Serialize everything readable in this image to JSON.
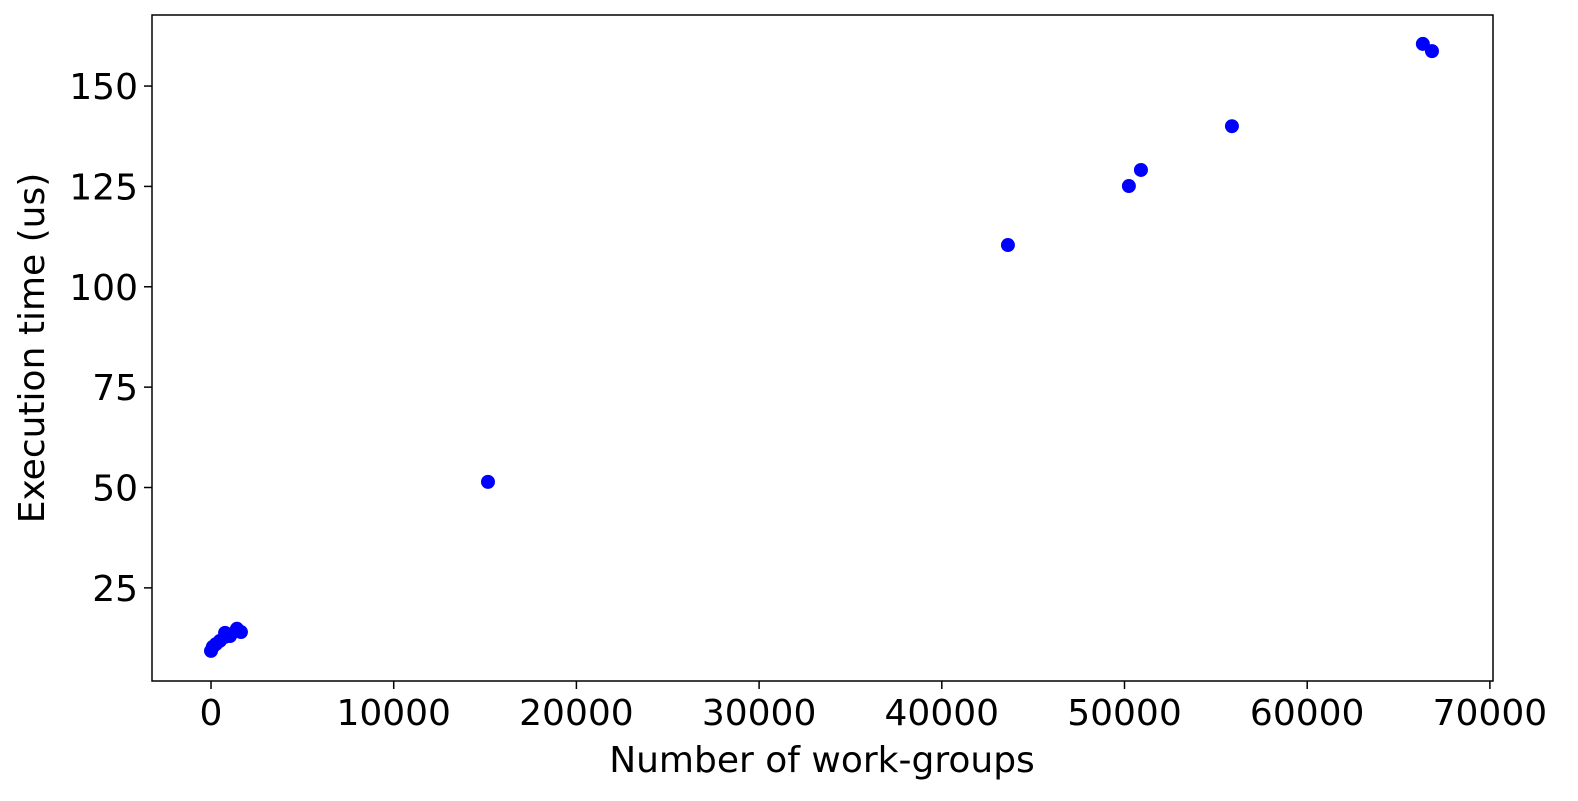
{
  "chart_data": {
    "type": "scatter",
    "xlabel": "Number of work-groups",
    "ylabel": "Execution time (us)",
    "series": [
      {
        "color": "#0000ff",
        "x": [
          0,
          100,
          270,
          490,
          770,
          770,
          1040,
          1370,
          1640,
          1420,
          15160,
          43620,
          50240,
          50900,
          55880,
          66330,
          66830
        ],
        "values": [
          9.3,
          10.3,
          11.0,
          11.8,
          12.8,
          13.8,
          13.0,
          14.3,
          14.0,
          14.8,
          51.4,
          110.4,
          125.1,
          129.1,
          140.0,
          160.5,
          158.7
        ]
      }
    ],
    "xlim": [
      -3230,
      70170
    ],
    "xticks": [
      0,
      10000,
      20000,
      30000,
      40000,
      50000,
      60000,
      70000
    ],
    "ylim": [
      1.8,
      167.7
    ],
    "yticks": [
      25,
      50,
      75,
      100,
      125,
      150
    ]
  }
}
